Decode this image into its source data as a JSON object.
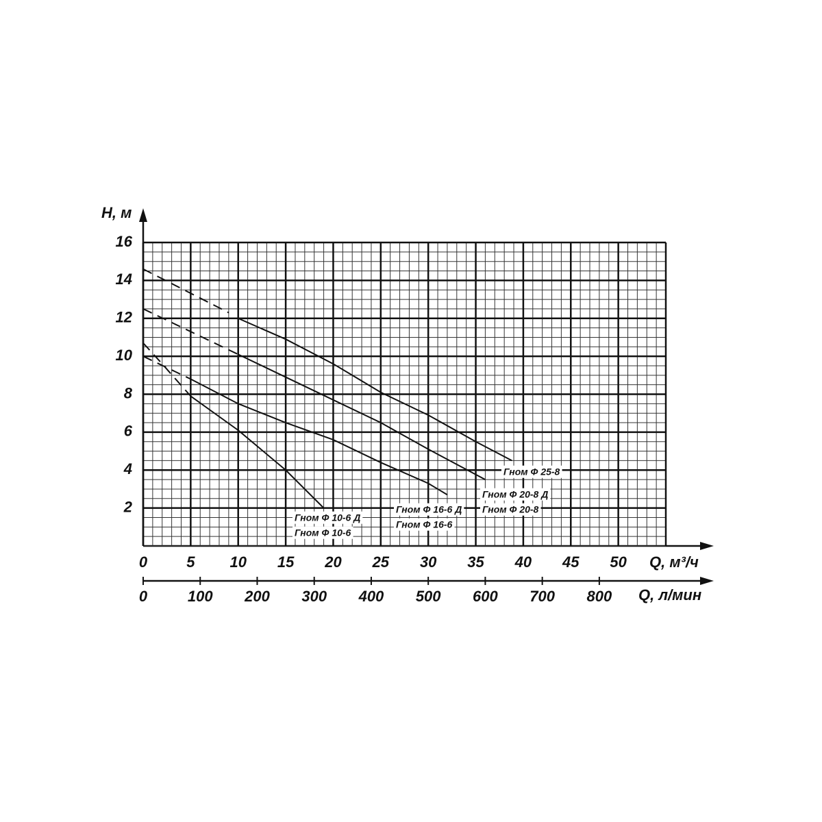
{
  "chart_data": {
    "type": "line",
    "ylabel": "H, м",
    "xlabel": "Q, м³/ч",
    "x2label": "Q, л/мин",
    "xlim": [
      0,
      55
    ],
    "xticks": [
      0,
      5,
      10,
      15,
      20,
      25,
      30,
      35,
      40,
      45,
      50
    ],
    "x2lim": [
      0,
      916.67
    ],
    "x2ticks": [
      0,
      100,
      200,
      300,
      400,
      500,
      600,
      700,
      800
    ],
    "ylim": [
      0,
      16
    ],
    "yticks": [
      2,
      4,
      6,
      8,
      10,
      12,
      14,
      16
    ],
    "grid": true,
    "minor_grid": {
      "x": 1,
      "y": 0.5
    },
    "series": [
      {
        "labels": [
          "Гном Ф 10-6 Д",
          "Гном Ф 10-6"
        ],
        "color": "#111",
        "segments": [
          {
            "style": "dashed",
            "x": [
              0,
              2,
              5
            ],
            "values": [
              10.7,
              9.6,
              7.9
            ]
          },
          {
            "style": "solid",
            "x": [
              5,
              10,
              15,
              19
            ],
            "values": [
              7.9,
              6.1,
              4.0,
              2.0
            ]
          }
        ]
      },
      {
        "labels": [
          "Гном Ф 16-6 Д",
          "Гном Ф 16-6"
        ],
        "color": "#111",
        "segments": [
          {
            "style": "dashed",
            "x": [
              0,
              5
            ],
            "values": [
              10.0,
              8.8
            ]
          },
          {
            "style": "solid",
            "x": [
              5,
              10,
              15,
              20,
              25,
              30,
              32
            ],
            "values": [
              8.8,
              7.5,
              6.5,
              5.6,
              4.4,
              3.3,
              2.7
            ]
          }
        ]
      },
      {
        "labels": [
          "Гном Ф 20-8 Д",
          "Гном Ф 20-8"
        ],
        "color": "#111",
        "segments": [
          {
            "style": "dashed",
            "x": [
              0,
              10
            ],
            "values": [
              12.5,
              10.1
            ]
          },
          {
            "style": "solid",
            "x": [
              10,
              15,
              20,
              25,
              30,
              36
            ],
            "values": [
              10.1,
              8.9,
              7.7,
              6.5,
              5.1,
              3.5
            ]
          }
        ]
      },
      {
        "labels": [
          "Гном Ф 25-8"
        ],
        "color": "#111",
        "segments": [
          {
            "style": "dashed",
            "x": [
              0,
              9
            ],
            "values": [
              14.6,
              12.3
            ]
          },
          {
            "style": "solid",
            "x": [
              10,
              15,
              20,
              25,
              30,
              35,
              38.8
            ],
            "values": [
              12.0,
              10.9,
              9.6,
              8.1,
              6.9,
              5.5,
              4.5
            ]
          }
        ]
      }
    ]
  }
}
